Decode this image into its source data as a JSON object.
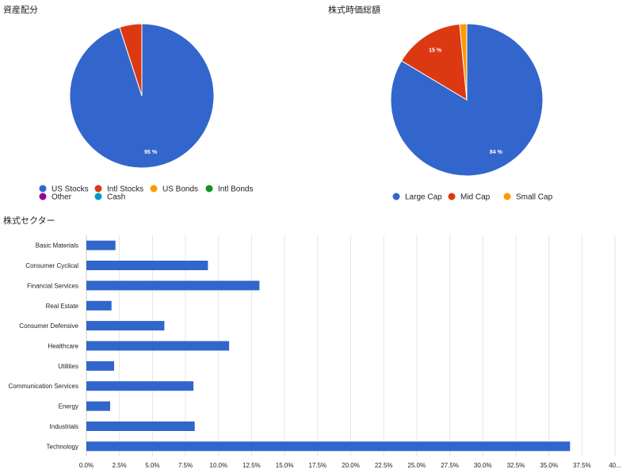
{
  "colors": {
    "blue": "#3366cc",
    "red": "#dc3912",
    "orange": "#ff9900",
    "green": "#109618",
    "purple": "#990099",
    "teal": "#0099c6",
    "grid": "#e6e6e6",
    "text": "#222222"
  },
  "chart_data": [
    {
      "type": "pie",
      "title": "資産配分",
      "legend_position": "bottom",
      "slices": [
        {
          "label": "US Stocks",
          "value": 95,
          "display": "95 %",
          "color": "#3366cc"
        },
        {
          "label": "Intl Stocks",
          "value": 5,
          "display": "",
          "color": "#dc3912"
        },
        {
          "label": "US Bonds",
          "value": 0,
          "display": "",
          "color": "#ff9900"
        },
        {
          "label": "Intl Bonds",
          "value": 0,
          "display": "",
          "color": "#109618"
        },
        {
          "label": "Other",
          "value": 0,
          "display": "",
          "color": "#990099"
        },
        {
          "label": "Cash",
          "value": 0,
          "display": "",
          "color": "#0099c6"
        }
      ]
    },
    {
      "type": "pie",
      "title": "株式時価総額",
      "legend_position": "bottom",
      "slices": [
        {
          "label": "Large Cap",
          "value": 84,
          "display": "84 %",
          "color": "#3366cc"
        },
        {
          "label": "Mid Cap",
          "value": 15,
          "display": "15 %",
          "color": "#dc3912"
        },
        {
          "label": "Small Cap",
          "value": 1.5,
          "display": "",
          "color": "#ff9900"
        }
      ]
    },
    {
      "type": "bar",
      "orientation": "horizontal",
      "title": "株式セクター",
      "grid": true,
      "xlim": [
        0,
        40
      ],
      "x_ticks": [
        "0.0%",
        "2.5%",
        "5.0%",
        "7.5%",
        "10.0%",
        "12.5%",
        "15.0%",
        "17.5%",
        "20.0%",
        "22.5%",
        "25.0%",
        "27.5%",
        "30.0%",
        "32.5%",
        "35.0%",
        "37.5%",
        "40..."
      ],
      "categories": [
        "Basic Materials",
        "Consumer Cyclical",
        "Financial Services",
        "Real Estate",
        "Consumer Defensive",
        "Healthcare",
        "Utilities",
        "Communication Services",
        "Energy",
        "Industrials",
        "Technology"
      ],
      "values": [
        2.2,
        9.2,
        13.1,
        1.9,
        5.9,
        10.8,
        2.1,
        8.1,
        1.8,
        8.2,
        36.6
      ],
      "color": "#3366cc"
    }
  ]
}
